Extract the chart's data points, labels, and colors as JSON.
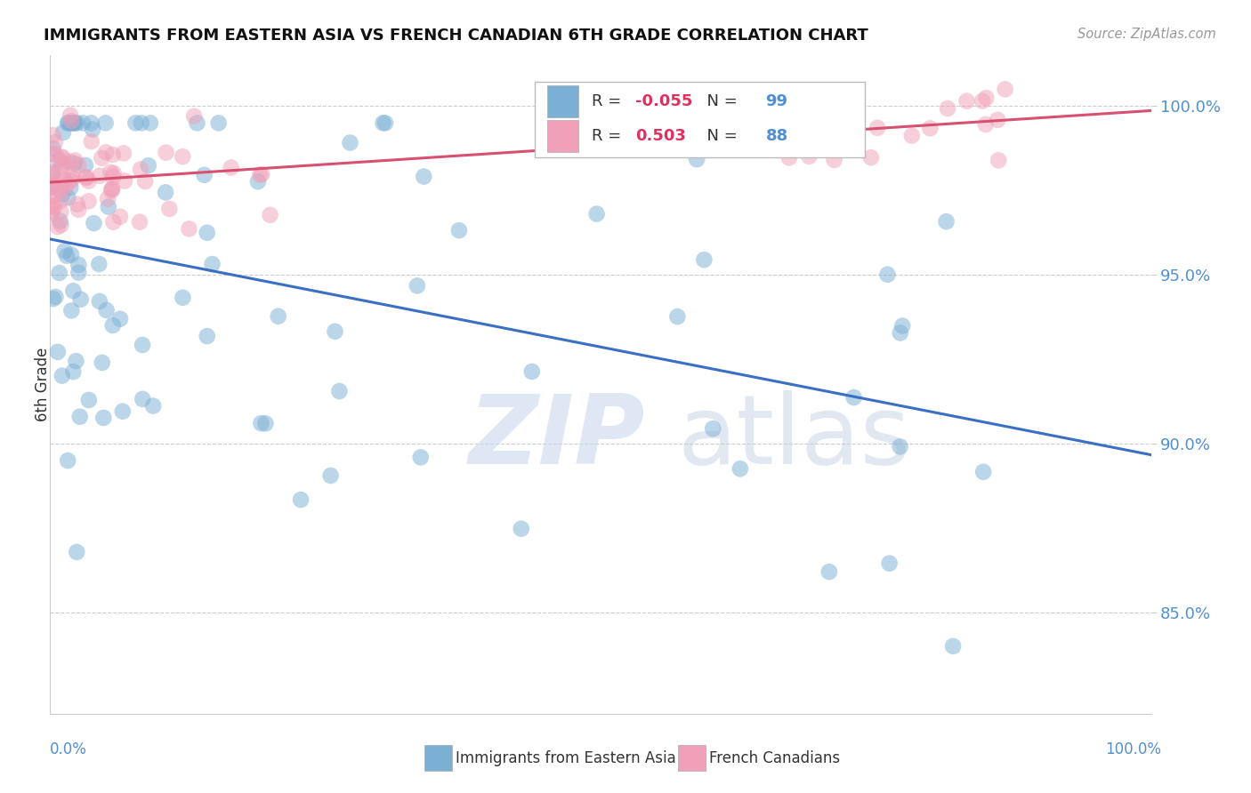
{
  "title": "IMMIGRANTS FROM EASTERN ASIA VS FRENCH CANADIAN 6TH GRADE CORRELATION CHART",
  "source": "Source: ZipAtlas.com",
  "ylabel": "6th Grade",
  "R_blue": -0.055,
  "N_blue": 99,
  "R_pink": 0.503,
  "N_pink": 88,
  "blue_color": "#7bafd4",
  "pink_color": "#f0a0b8",
  "blue_line_color": "#3a6fc4",
  "pink_line_color": "#d85070",
  "tick_color": "#5090d0",
  "x_min": 0.0,
  "x_max": 100.0,
  "y_min": 82.0,
  "y_max": 101.5,
  "y_ticks": [
    85.0,
    90.0,
    95.0,
    100.0
  ]
}
